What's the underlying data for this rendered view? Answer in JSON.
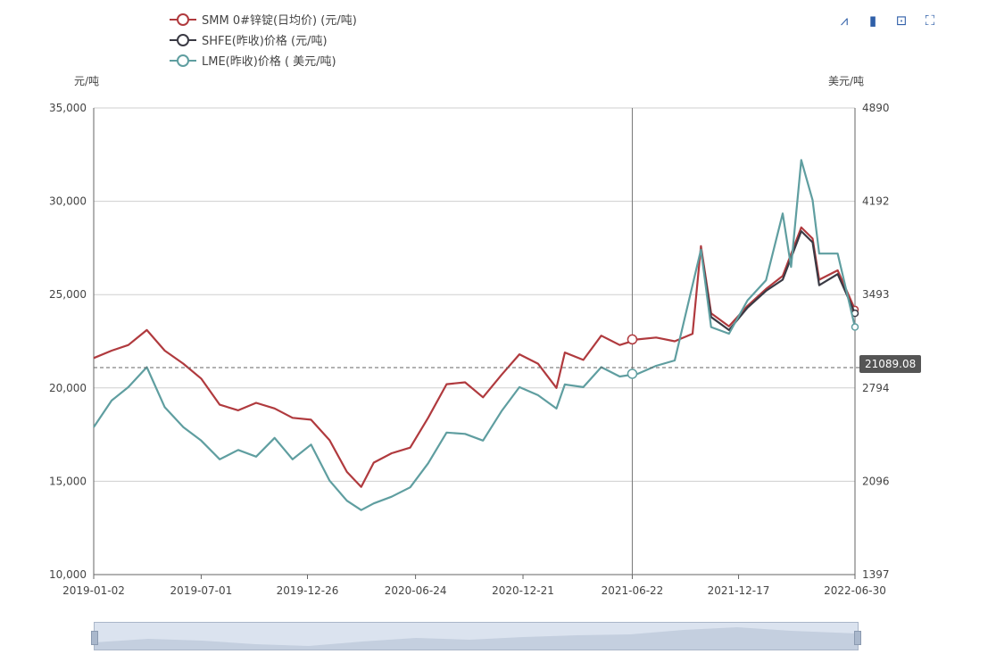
{
  "legend": [
    {
      "label": "SMM 0#锌锭(日均价)  (元/吨)",
      "color": "#b03a3e"
    },
    {
      "label": "SHFE(昨收)价格  (元/吨)",
      "color": "#3a3a44"
    },
    {
      "label": "LME(昨收)价格  ( 美元/吨)",
      "color": "#5f9ea0"
    }
  ],
  "toolbox": [
    {
      "name": "line-chart-icon",
      "glyph": "⩘"
    },
    {
      "name": "bar-chart-icon",
      "glyph": "▮"
    },
    {
      "name": "save-image-icon",
      "glyph": "⊡"
    },
    {
      "name": "fullscreen-icon",
      "glyph": "⛶"
    }
  ],
  "crosshair_value": "21089.08",
  "chart_data": {
    "type": "line",
    "left_axis": {
      "unit": "元/吨",
      "ticks": [
        "10,000",
        "15,000",
        "20,000",
        "25,000",
        "30,000",
        "35,000"
      ],
      "min": 10000,
      "max": 35000
    },
    "right_axis": {
      "unit": "美元/吨",
      "ticks": [
        "1397",
        "2096",
        "2794",
        "3493",
        "4192",
        "4890"
      ],
      "min": 1397,
      "max": 4890
    },
    "x_ticks": [
      "2019-01-02",
      "2019-07-01",
      "2019-12-26",
      "2020-06-24",
      "2020-12-21",
      "2021-06-22",
      "2021-12-17",
      "2022-06-30"
    ],
    "crosshair": {
      "date": "2021-06-22",
      "value": 21089.08
    },
    "series": [
      {
        "name": "SMM 0#锌锭(日均价)  (元/吨)",
        "axis": "left",
        "color": "#b03a3e",
        "points": [
          [
            "2019-01-02",
            21600
          ],
          [
            "2019-02-01",
            22000
          ],
          [
            "2019-03-01",
            22300
          ],
          [
            "2019-04-01",
            23100
          ],
          [
            "2019-05-01",
            22000
          ],
          [
            "2019-06-01",
            21300
          ],
          [
            "2019-07-01",
            20500
          ],
          [
            "2019-08-01",
            19100
          ],
          [
            "2019-09-01",
            18800
          ],
          [
            "2019-10-01",
            19200
          ],
          [
            "2019-11-01",
            18900
          ],
          [
            "2019-12-01",
            18400
          ],
          [
            "2020-01-01",
            18300
          ],
          [
            "2020-02-01",
            17200
          ],
          [
            "2020-03-01",
            15500
          ],
          [
            "2020-03-25",
            14700
          ],
          [
            "2020-04-15",
            16000
          ],
          [
            "2020-05-15",
            16500
          ],
          [
            "2020-06-15",
            16800
          ],
          [
            "2020-07-15",
            18400
          ],
          [
            "2020-08-15",
            20200
          ],
          [
            "2020-09-15",
            20300
          ],
          [
            "2020-10-15",
            19500
          ],
          [
            "2020-11-15",
            20700
          ],
          [
            "2020-12-15",
            21800
          ],
          [
            "2021-01-15",
            21300
          ],
          [
            "2021-02-15",
            20000
          ],
          [
            "2021-03-01",
            21900
          ],
          [
            "2021-04-01",
            21500
          ],
          [
            "2021-05-01",
            22800
          ],
          [
            "2021-06-01",
            22300
          ],
          [
            "2021-07-01",
            22600
          ],
          [
            "2021-08-01",
            22700
          ],
          [
            "2021-09-01",
            22500
          ],
          [
            "2021-10-01",
            22900
          ],
          [
            "2021-10-15",
            27600
          ],
          [
            "2021-11-01",
            24000
          ],
          [
            "2021-12-01",
            23300
          ],
          [
            "2022-01-01",
            24400
          ],
          [
            "2022-02-01",
            25300
          ],
          [
            "2022-03-01",
            26000
          ],
          [
            "2022-04-01",
            28600
          ],
          [
            "2022-04-20",
            28000
          ],
          [
            "2022-05-01",
            25800
          ],
          [
            "2022-06-01",
            26300
          ],
          [
            "2022-06-30",
            24200
          ]
        ]
      },
      {
        "name": "SHFE(昨收)价格  (元/吨)",
        "axis": "left",
        "color": "#3a3a44",
        "points": [
          [
            "2021-10-15",
            27400
          ],
          [
            "2021-11-01",
            23800
          ],
          [
            "2021-12-01",
            23100
          ],
          [
            "2022-01-01",
            24300
          ],
          [
            "2022-02-01",
            25200
          ],
          [
            "2022-03-01",
            25800
          ],
          [
            "2022-04-01",
            28400
          ],
          [
            "2022-04-20",
            27800
          ],
          [
            "2022-05-01",
            25500
          ],
          [
            "2022-06-01",
            26100
          ],
          [
            "2022-06-30",
            24000
          ]
        ]
      },
      {
        "name": "LME(昨收)价格  ( 美元/吨)",
        "axis": "right",
        "color": "#5f9ea0",
        "points": [
          [
            "2019-01-02",
            2500
          ],
          [
            "2019-02-01",
            2700
          ],
          [
            "2019-03-01",
            2800
          ],
          [
            "2019-04-01",
            2950
          ],
          [
            "2019-05-01",
            2650
          ],
          [
            "2019-06-01",
            2500
          ],
          [
            "2019-07-01",
            2400
          ],
          [
            "2019-08-01",
            2260
          ],
          [
            "2019-09-01",
            2330
          ],
          [
            "2019-10-01",
            2280
          ],
          [
            "2019-11-01",
            2420
          ],
          [
            "2019-12-01",
            2260
          ],
          [
            "2020-01-01",
            2370
          ],
          [
            "2020-02-01",
            2100
          ],
          [
            "2020-03-01",
            1950
          ],
          [
            "2020-03-25",
            1880
          ],
          [
            "2020-04-15",
            1930
          ],
          [
            "2020-05-15",
            1980
          ],
          [
            "2020-06-15",
            2050
          ],
          [
            "2020-07-15",
            2230
          ],
          [
            "2020-08-15",
            2460
          ],
          [
            "2020-09-15",
            2450
          ],
          [
            "2020-10-15",
            2400
          ],
          [
            "2020-11-15",
            2620
          ],
          [
            "2020-12-15",
            2800
          ],
          [
            "2021-01-15",
            2740
          ],
          [
            "2021-02-15",
            2640
          ],
          [
            "2021-03-01",
            2820
          ],
          [
            "2021-04-01",
            2800
          ],
          [
            "2021-05-01",
            2950
          ],
          [
            "2021-06-01",
            2880
          ],
          [
            "2021-07-01",
            2900
          ],
          [
            "2021-08-01",
            2960
          ],
          [
            "2021-09-01",
            3000
          ],
          [
            "2021-10-15",
            3830
          ],
          [
            "2021-11-01",
            3250
          ],
          [
            "2021-12-01",
            3200
          ],
          [
            "2022-01-01",
            3450
          ],
          [
            "2022-02-01",
            3600
          ],
          [
            "2022-03-01",
            4100
          ],
          [
            "2022-03-15",
            3700
          ],
          [
            "2022-04-01",
            4500
          ],
          [
            "2022-04-20",
            4200
          ],
          [
            "2022-05-01",
            3800
          ],
          [
            "2022-06-01",
            3800
          ],
          [
            "2022-06-30",
            3250
          ]
        ]
      }
    ]
  }
}
